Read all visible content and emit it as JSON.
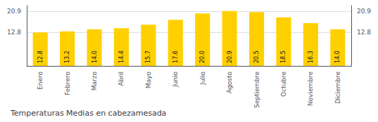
{
  "chart_data": {
    "type": "bar",
    "title": "Temperaturas Medias en cabezamesada",
    "categories": [
      "Enero",
      "Febrero",
      "Marzo",
      "Abril",
      "Mayo",
      "Junio",
      "Julio",
      "Agosto",
      "Septiembre",
      "Octubre",
      "Noviembre",
      "Diciembre"
    ],
    "values": [
      12.8,
      13.2,
      14.0,
      14.4,
      15.7,
      17.6,
      20.0,
      20.9,
      20.5,
      18.5,
      16.3,
      14.0
    ],
    "value_labels": [
      "12.8",
      "13.2",
      "14.0",
      "14.4",
      "15.7",
      "17.6",
      "20.0",
      "20.9",
      "20.5",
      "18.5",
      "16.3",
      "14.0"
    ],
    "color": "#FFD000",
    "ylim": [
      0.0,
      23.0
    ],
    "yticks": [
      12.8,
      20.9
    ],
    "grid": true,
    "data_labels": true
  }
}
